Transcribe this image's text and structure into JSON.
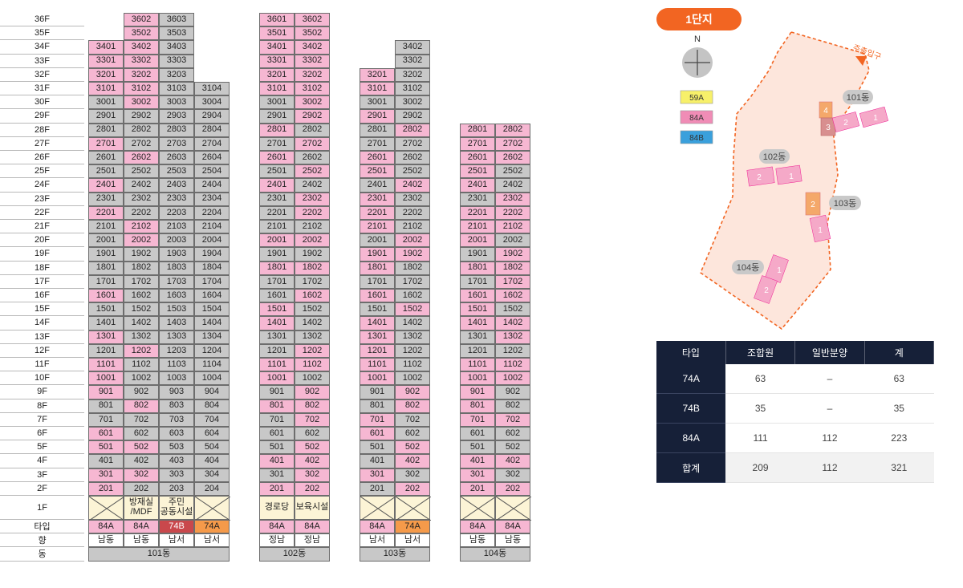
{
  "floor_labels": [
    "36F",
    "35F",
    "34F",
    "33F",
    "32F",
    "31F",
    "30F",
    "29F",
    "28F",
    "27F",
    "26F",
    "25F",
    "24F",
    "23F",
    "22F",
    "21F",
    "20F",
    "19F",
    "18F",
    "17F",
    "16F",
    "15F",
    "14F",
    "13F",
    "12F",
    "11F",
    "10F",
    "9F",
    "8F",
    "7F",
    "6F",
    "5F",
    "4F",
    "3F",
    "2F"
  ],
  "row_labels": {
    "first_floor": "1F",
    "type": "타입",
    "direction": "향",
    "building": "동"
  },
  "buildings": [
    {
      "name": "101동",
      "columns": [
        {
          "top_floor": 34,
          "pink_floors": [
            34,
            33,
            32,
            31,
            27,
            24,
            22,
            16,
            13,
            11,
            10,
            9,
            6,
            5,
            3,
            2
          ],
          "type": "84A",
          "type_class": "pink",
          "facility": "",
          "direction": "남동"
        },
        {
          "top_floor": 36,
          "pink_floors": [
            36,
            35,
            34,
            33,
            32,
            31,
            30,
            26,
            21,
            20,
            12,
            8,
            5,
            3
          ],
          "type": "84A",
          "type_class": "pink",
          "facility": "방재실\n/MDF",
          "direction": "남동"
        },
        {
          "top_floor": 36,
          "pink_floors": [],
          "type": "74B",
          "type_class": "c74b",
          "facility": "주민\n공동시설",
          "direction": "남서"
        },
        {
          "top_floor": 31,
          "pink_floors": [],
          "type": "74A",
          "type_class": "c74a",
          "facility": "",
          "direction": "남서"
        }
      ]
    },
    {
      "name": "102동",
      "columns": [
        {
          "top_floor": 36,
          "pink_floors": [
            36,
            35,
            34,
            33,
            32,
            31,
            28,
            26,
            24,
            20,
            18,
            15,
            14,
            11,
            10,
            8,
            4,
            2
          ],
          "type": "84A",
          "type_class": "pink",
          "facility": "경로당",
          "direction": "정남"
        },
        {
          "top_floor": 36,
          "pink_floors": [
            36,
            35,
            34,
            33,
            32,
            31,
            30,
            29,
            27,
            25,
            23,
            22,
            20,
            18,
            16,
            12,
            11,
            9,
            8,
            7,
            5,
            4,
            3,
            2
          ],
          "type": "84A",
          "type_class": "pink",
          "facility": "보육시설",
          "direction": "정남"
        }
      ]
    },
    {
      "name": "103동",
      "columns": [
        {
          "top_floor": 32,
          "pink_floors": [
            32,
            31,
            29,
            26,
            25,
            23,
            22,
            21,
            19,
            18,
            16,
            14,
            13,
            12,
            11,
            10,
            7,
            6,
            3
          ],
          "type": "84A",
          "type_class": "pink",
          "facility": "",
          "direction": "남서"
        },
        {
          "top_floor": 34,
          "pink_floors": [
            28,
            24,
            20,
            19,
            15,
            9,
            8,
            5,
            4,
            2
          ],
          "type": "74A",
          "type_class": "c74a",
          "facility": "",
          "direction": "남서"
        }
      ]
    },
    {
      "name": "104동",
      "columns": [
        {
          "top_floor": 28,
          "pink_floors": [
            28,
            27,
            26,
            25,
            24,
            22,
            21,
            20,
            18,
            16,
            15,
            14,
            11,
            10,
            9,
            8,
            7,
            4,
            3,
            2
          ],
          "type": "84A",
          "type_class": "pink",
          "facility": "",
          "direction": "남동"
        },
        {
          "top_floor": 28,
          "pink_floors": [
            28,
            27,
            26,
            23,
            22,
            21,
            19,
            18,
            17,
            16,
            14,
            13,
            11,
            10,
            7,
            4,
            2
          ],
          "type": "84A",
          "type_class": "pink",
          "facility": "",
          "direction": "남동"
        }
      ]
    }
  ],
  "map": {
    "title": "1단지",
    "compass_label": "N",
    "entrance_label": "주출입구",
    "legend": [
      {
        "label": "59A",
        "color": "#f7f06a"
      },
      {
        "label": "84A",
        "color": "#f08cb6"
      },
      {
        "label": "84B",
        "color": "#3aa0dc"
      }
    ],
    "building_labels": [
      "101동",
      "102동",
      "103동",
      "104동"
    ],
    "block_numbers": {
      "b101": [
        "4",
        "3",
        "2",
        "1"
      ],
      "b102": [
        "2",
        "1"
      ],
      "b103": [
        "2",
        "1"
      ],
      "b104": [
        "1",
        "2"
      ]
    },
    "colors": {
      "accent": "#f26522",
      "site_fill": "#fde6dc",
      "pink_block": "#f5a9c8",
      "orange_block": "#f4a86a"
    }
  },
  "summary_table": {
    "headers": [
      "타입",
      "조합원",
      "일반분양",
      "계"
    ],
    "rows": [
      [
        "74A",
        "63",
        "–",
        "63"
      ],
      [
        "74B",
        "35",
        "–",
        "35"
      ],
      [
        "84A",
        "111",
        "112",
        "223"
      ],
      [
        "합계",
        "209",
        "112",
        "321"
      ]
    ]
  }
}
